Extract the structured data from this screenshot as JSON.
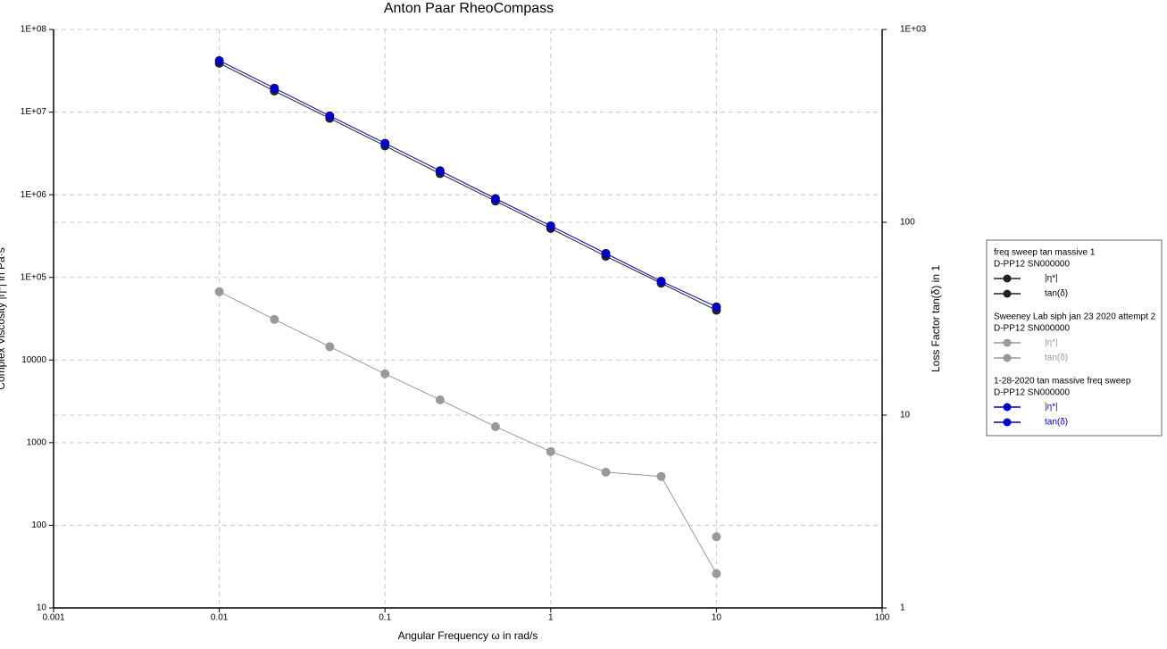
{
  "chart_data": {
    "type": "line",
    "title": "Anton Paar RheoCompass",
    "x_label": "Angular Frequency ω in rad/s",
    "y_label": "Complex Viscosity |η*| in Pa·s",
    "y2_label": "Loss Factor tan(δ) in 1",
    "log_x": true,
    "log_y": true,
    "log_y2": true,
    "grid": true,
    "legend": "right",
    "xlim": [
      0.001,
      100
    ],
    "xticks": [
      0.001,
      0.01,
      0.1,
      1,
      10,
      100
    ],
    "ylim": [
      10,
      100000000
    ],
    "yticks": [
      10,
      100,
      1000,
      10000,
      {
        "value": 100000,
        "label": "1E+05"
      },
      {
        "value": 1000000,
        "label": "1E+06"
      },
      {
        "value": 10000000,
        "label": "1E+07"
      },
      {
        "value": 100000000,
        "label": "1E+08"
      }
    ],
    "y2lim": [
      1,
      1000
    ],
    "y2ticks": [
      1,
      10,
      100,
      {
        "value": 1000,
        "label": "1E+03"
      }
    ],
    "groups": [
      {
        "title": "freq sweep tan massive 1",
        "device": "D-PP12 SN000000",
        "series": [
          {
            "name": "|η*|",
            "color": "#222222",
            "x": [
              0.01,
              0.0215,
              0.0464,
              0.1,
              0.215,
              0.464,
              1,
              2.15,
              4.64,
              10
            ],
            "values": [
              39000000,
              18000000,
              8400000,
              3900000,
              1800000,
              840000,
              390000,
              180000,
              85000,
              40000
            ]
          },
          {
            "name": "tan(δ)",
            "color": "#222222",
            "axis": "y2",
            "x": [],
            "values": []
          }
        ]
      },
      {
        "title": "Sweeney Lab siph jan 23 2020 attempt 2",
        "device": "D-PP12 SN000000",
        "series": [
          {
            "name": "|η*|",
            "color": "#999999",
            "x": [
              0.01,
              0.0215,
              0.0464,
              0.1,
              0.215,
              0.464,
              1,
              2.15,
              4.64,
              10
            ],
            "values": [
              67000,
              31000,
              14500,
              6800,
              3300,
              1560,
              780,
              440,
              390,
              26
            ]
          },
          {
            "name": "tan(δ)",
            "color": "#999999",
            "axis": "y2",
            "x": [
              10
            ],
            "values": [
              2.34
            ]
          }
        ]
      },
      {
        "title": "1-28-2020 tan massive freq sweep",
        "device": "D-PP12 SN000000",
        "series": [
          {
            "name": "|η*|",
            "color": "#0000c0",
            "x": [
              0.01,
              0.0215,
              0.0464,
              0.1,
              0.215,
              0.464,
              1,
              2.15,
              4.64,
              10
            ],
            "values": [
              42000000,
              19500000,
              9000000,
              4200000,
              1950000,
              900000,
              420000,
              195000,
              90000,
              44000
            ]
          },
          {
            "name": "tan(δ)",
            "color": "#0000c0",
            "axis": "y2",
            "x": [],
            "values": []
          }
        ]
      }
    ]
  }
}
